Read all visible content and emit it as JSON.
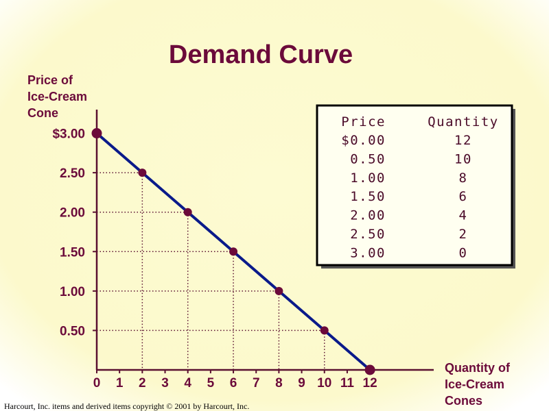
{
  "chart_data": {
    "type": "line",
    "title": "Demand Curve",
    "ylabel": [
      "Price of",
      "Ice-Cream",
      "Cone"
    ],
    "xlabel": [
      "Quantity of",
      "Ice-Cream",
      "Cones"
    ],
    "x": [
      0,
      2,
      4,
      6,
      8,
      10,
      12
    ],
    "values": [
      3,
      2.5,
      2,
      1.5,
      1,
      0.5,
      0
    ],
    "color": "#0a1a8a",
    "marker_color": "#6b0a3a",
    "xlim": [
      0,
      14.8
    ],
    "ylim": [
      0,
      3.3
    ],
    "xticks": [
      0,
      1,
      2,
      3,
      4,
      5,
      6,
      7,
      8,
      9,
      10,
      11,
      12
    ],
    "yticks": [
      {
        "value": 3,
        "label": "$3.00"
      },
      {
        "value": 2.5,
        "label": "2.50"
      },
      {
        "value": 2,
        "label": "2.00"
      },
      {
        "value": 1.5,
        "label": "1.50"
      },
      {
        "value": 1,
        "label": "1.00"
      },
      {
        "value": 0.5,
        "label": "0.50"
      }
    ],
    "drop_lines": true
  },
  "table": {
    "header": [
      "Price",
      "Quantity"
    ],
    "rows": [
      [
        "$0.00",
        "12"
      ],
      [
        "0.50",
        "10"
      ],
      [
        "1.00",
        "8"
      ],
      [
        "1.50",
        "6"
      ],
      [
        "2.00",
        "4"
      ],
      [
        "2.50",
        "2"
      ],
      [
        "3.00",
        "0"
      ]
    ]
  },
  "footer": "Harcourt, Inc. items and derived items copyright © 2001  by Harcourt, Inc."
}
